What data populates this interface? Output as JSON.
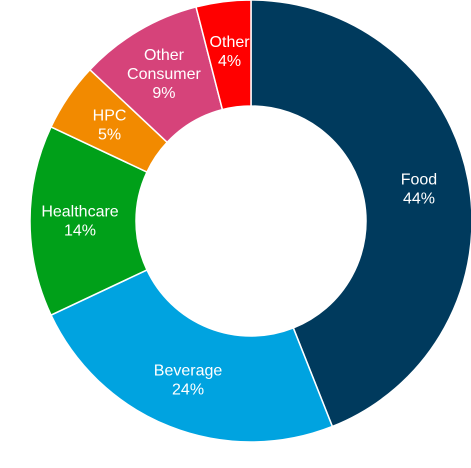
{
  "chart_data": {
    "type": "pie",
    "variant": "donut",
    "title": "",
    "legend": "none",
    "slices": [
      {
        "label_lines": [
          "Food"
        ],
        "value_text": "44%",
        "value": 44,
        "color": "#003a5d"
      },
      {
        "label_lines": [
          "Beverage"
        ],
        "value_text": "24%",
        "value": 24,
        "color": "#00a3e0"
      },
      {
        "label_lines": [
          "Healthcare"
        ],
        "value_text": "14%",
        "value": 14,
        "color": "#00a019"
      },
      {
        "label_lines": [
          "HPC"
        ],
        "value_text": "5%",
        "value": 5,
        "color": "#f28a00"
      },
      {
        "label_lines": [
          "Other",
          "Consumer"
        ],
        "value_text": "9%",
        "value": 9,
        "color": "#d6437a"
      },
      {
        "label_lines": [
          "Other"
        ],
        "value_text": "4%",
        "value": 4,
        "color": "#ff0000"
      }
    ]
  }
}
